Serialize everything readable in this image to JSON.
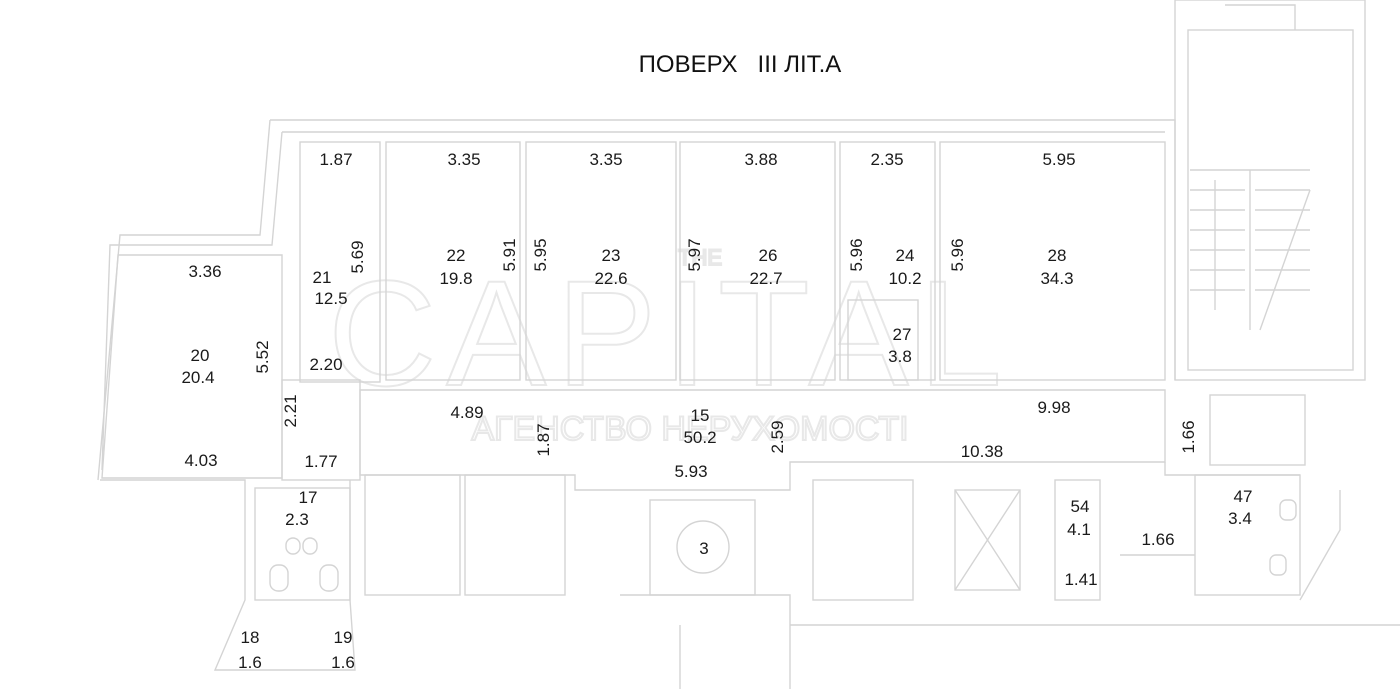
{
  "title": "ПОВЕРХ   III ЛІТ.А",
  "watermark": {
    "top": "THE",
    "brand": "CAPITAL",
    "sub": "АГЕНСТВО НЕРУХОМОСТІ"
  },
  "rooms": {
    "r20": {
      "number": "20",
      "area": "20.4"
    },
    "r21": {
      "number": "21",
      "area": "12.5"
    },
    "r22": {
      "number": "22",
      "area": "19.8"
    },
    "r23": {
      "number": "23",
      "area": "22.6"
    },
    "r26": {
      "number": "26",
      "area": "22.7"
    },
    "r24": {
      "number": "24",
      "area": "10.2"
    },
    "r28": {
      "number": "28",
      "area": "34.3"
    },
    "r27": {
      "number": "27",
      "area": "3.8"
    },
    "r15": {
      "number": "15",
      "area": "50.2"
    },
    "r17": {
      "number": "17",
      "area": "2.3"
    },
    "r18": {
      "number": "18",
      "area": "1.6"
    },
    "r19": {
      "number": "19",
      "area": "1.6"
    },
    "r54": {
      "number": "54",
      "area": "4.1"
    },
    "r47": {
      "number": "47",
      "area": "3.4"
    },
    "r3": {
      "number": "3"
    }
  },
  "dimensions": [
    "1.87",
    "3.35",
    "3.35",
    "3.88",
    "2.35",
    "5.95",
    "3.36",
    "5.69",
    "5.91",
    "5.95",
    "5.97",
    "5.96",
    "5.96",
    "5.52",
    "2.20",
    "2.21",
    "4.89",
    "1.87",
    "2.59",
    "9.98",
    "10.38",
    "1.66",
    "4.03",
    "1.77",
    "5.93",
    "1.66",
    "1.41"
  ]
}
